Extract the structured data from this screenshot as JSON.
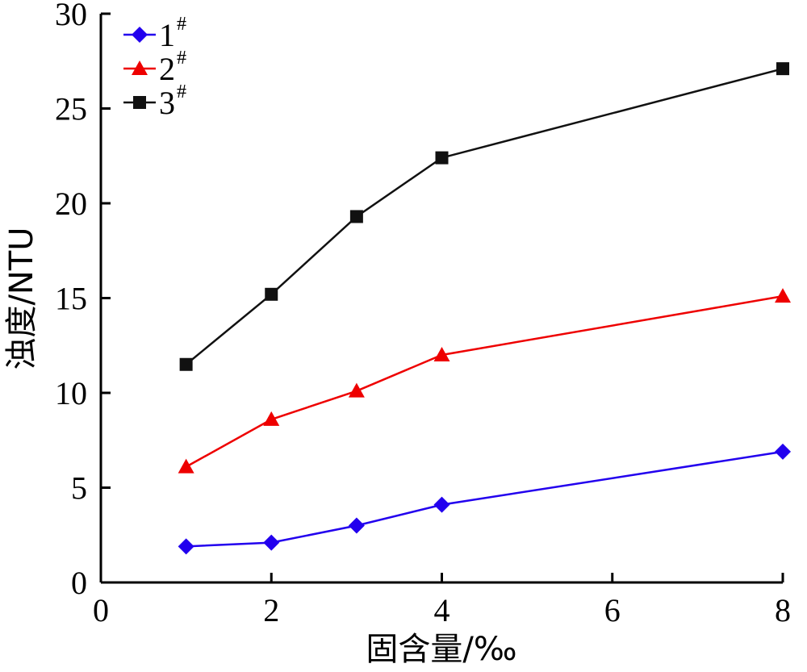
{
  "chart_data": {
    "type": "line",
    "xlabel": "固含量/‰",
    "ylabel": "浊度/NTU",
    "xlim": [
      0,
      8
    ],
    "ylim": [
      0,
      30
    ],
    "xticks": [
      0,
      2,
      4,
      6,
      8
    ],
    "yticks": [
      0,
      5,
      10,
      15,
      20,
      25,
      30
    ],
    "grid": false,
    "legend_position": "top-left",
    "series": [
      {
        "name": "1",
        "sup": "#",
        "color": "#2200ee",
        "marker": "diamond",
        "x": [
          1,
          2,
          3,
          4,
          8
        ],
        "y": [
          1.9,
          2.1,
          3.0,
          4.1,
          6.9
        ]
      },
      {
        "name": "2",
        "sup": "#",
        "color": "#ee0000",
        "marker": "triangle",
        "x": [
          1,
          2,
          3,
          4,
          8
        ],
        "y": [
          6.1,
          8.6,
          10.1,
          12.0,
          15.1
        ]
      },
      {
        "name": "3",
        "sup": "#",
        "color": "#111111",
        "marker": "square",
        "x": [
          1,
          2,
          3,
          4,
          8
        ],
        "y": [
          11.5,
          15.2,
          19.3,
          22.4,
          27.1
        ]
      }
    ]
  }
}
